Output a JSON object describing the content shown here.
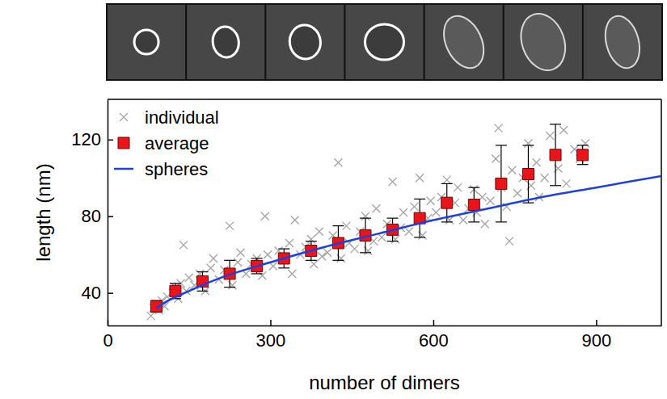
{
  "chart_data": {
    "type": "scatter",
    "xlabel": "number of dimers",
    "ylabel": "length (nm)",
    "xlim": [
      0,
      1020
    ],
    "ylim": [
      23,
      141
    ],
    "xticks": [
      0,
      300,
      600,
      900
    ],
    "yticks": [
      40,
      80,
      120
    ],
    "grid": false,
    "legend": "upper left",
    "series": [
      {
        "name": "individual",
        "type": "scatter",
        "marker": "x",
        "color": "#a3a3a3",
        "x": [
          80,
          85,
          90,
          95,
          100,
          105,
          110,
          120,
          125,
          130,
          135,
          140,
          145,
          150,
          160,
          170,
          175,
          180,
          190,
          195,
          205,
          215,
          225,
          230,
          240,
          245,
          255,
          265,
          275,
          285,
          290,
          295,
          305,
          315,
          325,
          335,
          340,
          345,
          355,
          365,
          375,
          380,
          390,
          395,
          405,
          415,
          425,
          430,
          440,
          445,
          455,
          465,
          475,
          480,
          490,
          495,
          505,
          515,
          525,
          530,
          540,
          545,
          555,
          565,
          575,
          580,
          590,
          595,
          605,
          615,
          625,
          630,
          640,
          645,
          655,
          665,
          675,
          680,
          690,
          695,
          705,
          715,
          720,
          725,
          735,
          740,
          745,
          755,
          765,
          775,
          780,
          790,
          795,
          805,
          815,
          825,
          830,
          840,
          845,
          860,
          870,
          880
        ],
        "values": [
          28,
          32,
          34,
          31,
          36,
          33,
          38,
          40,
          43,
          37,
          45,
          65,
          41,
          48,
          44,
          50,
          46,
          41,
          53,
          58,
          47,
          52,
          75,
          44,
          56,
          61,
          50,
          55,
          58,
          49,
          80,
          60,
          54,
          62,
          57,
          66,
          50,
          78,
          60,
          64,
          68,
          55,
          72,
          59,
          61,
          70,
          108,
          58,
          75,
          66,
          63,
          72,
          80,
          62,
          67,
          84,
          69,
          76,
          98,
          68,
          74,
          82,
          72,
          85,
          100,
          70,
          79,
          88,
          82,
          90,
          99,
          78,
          87,
          95,
          78,
          84,
          94,
          82,
          90,
          76,
          88,
          110,
          126,
          95,
          85,
          67,
          104,
          92,
          100,
          118,
          96,
          108,
          90,
          100,
          122,
          112,
          105,
          125,
          97,
          115,
          110,
          118
        ]
      },
      {
        "name": "average",
        "type": "scatter",
        "marker": "square",
        "color": "#e8161b",
        "x": [
          90,
          125,
          175,
          225,
          275,
          325,
          375,
          425,
          475,
          525,
          575,
          625,
          675,
          725,
          775,
          825,
          875
        ],
        "values": [
          33,
          41,
          46,
          50,
          54,
          58,
          62,
          66,
          70,
          73,
          79,
          87,
          86,
          97,
          102,
          112,
          112
        ],
        "errors": [
          3,
          4,
          5,
          7,
          4,
          5,
          5,
          9,
          9,
          6,
          10,
          10,
          9,
          20,
          15,
          16,
          5
        ]
      },
      {
        "name": "spheres",
        "type": "line",
        "color": "#1f3fe0",
        "x": [
          90,
          100,
          150,
          200,
          300,
          400,
          500,
          600,
          700,
          800,
          900,
          1020
        ],
        "values": [
          32,
          34,
          41,
          47,
          56,
          64,
          71,
          78,
          84,
          90,
          95,
          101
        ]
      }
    ]
  }
}
